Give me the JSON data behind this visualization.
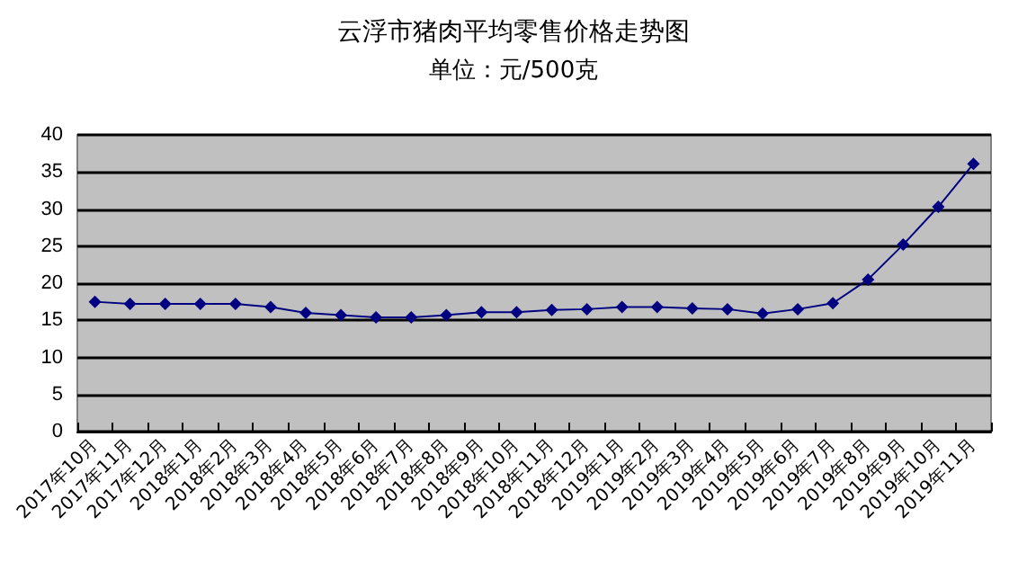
{
  "chart_data": {
    "type": "line",
    "title": "云浮市猪肉平均零售价格走势图",
    "subtitle": "单位：元/500克",
    "categories": [
      "2017年10月",
      "2017年11月",
      "2017年12月",
      "2018年1月",
      "2018年2月",
      "2018年3月",
      "2018年4月",
      "2018年5月",
      "2018年6月",
      "2018年7月",
      "2018年8月",
      "2018年9月",
      "2018年10月",
      "2018年11月",
      "2018年12月",
      "2019年1月",
      "2019年2月",
      "2019年3月",
      "2019年4月",
      "2019年5月",
      "2019年6月",
      "2019年7月",
      "2019年8月",
      "2019年9月",
      "2019年10月",
      "2019年11月"
    ],
    "series": [
      {
        "color": "#000080",
        "values": [
          17.5,
          17.2,
          17.2,
          17.2,
          17.2,
          16.8,
          16.0,
          15.7,
          15.4,
          15.4,
          15.7,
          16.1,
          16.1,
          16.4,
          16.5,
          16.8,
          16.8,
          16.6,
          16.5,
          15.9,
          16.5,
          17.3,
          20.5,
          25.2,
          30.3,
          36.1
        ]
      }
    ],
    "ylim": [
      0,
      40
    ],
    "yticks": [
      0,
      5,
      10,
      15,
      20,
      25,
      30,
      35,
      40
    ],
    "grid": "y",
    "marker": "diamond",
    "line_style": "solid"
  }
}
